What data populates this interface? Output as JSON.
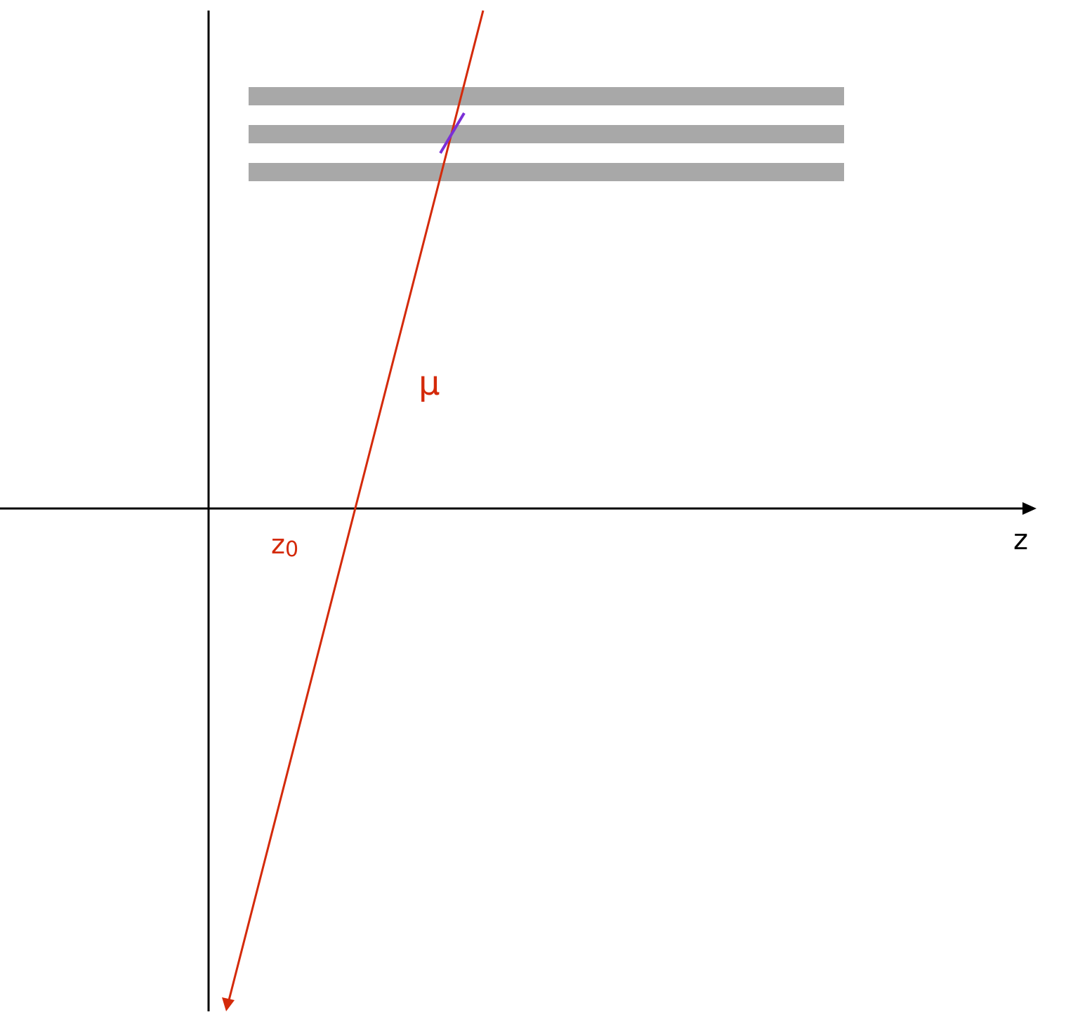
{
  "axis": {
    "z_label": "z"
  },
  "track": {
    "particle_label": "μ",
    "intercept_label_base": "z",
    "intercept_label_sub": "0"
  },
  "detector": {
    "layer_count": 3
  },
  "colors": {
    "axis": "#000000",
    "track": "#d42a0a",
    "detector_layer": "#a8a8a8",
    "hit": "#7a2fd6",
    "background": "#ffffff"
  }
}
